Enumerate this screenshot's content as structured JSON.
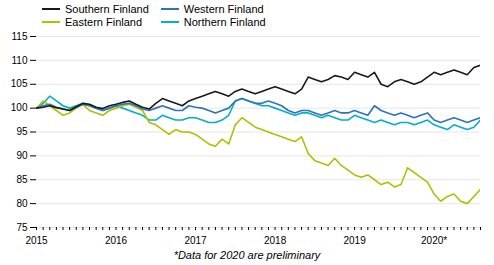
{
  "chart_data": {
    "type": "line",
    "categories": [
      "2015",
      null,
      null,
      null,
      null,
      null,
      null,
      null,
      null,
      null,
      null,
      null,
      "2016",
      null,
      null,
      null,
      null,
      null,
      null,
      null,
      null,
      null,
      null,
      null,
      "2017",
      null,
      null,
      null,
      null,
      null,
      null,
      null,
      null,
      null,
      null,
      null,
      "2018",
      null,
      null,
      null,
      null,
      null,
      null,
      null,
      null,
      null,
      null,
      null,
      "2019",
      null,
      null,
      null,
      null,
      null,
      null,
      null,
      null,
      null,
      null,
      null,
      "2020*",
      null,
      null,
      null,
      null,
      null,
      null,
      null
    ],
    "series": [
      {
        "name": "Southern Finland",
        "color": "#1a1a1a",
        "values": [
          100.0,
          100.2,
          100.5,
          100.1,
          99.8,
          99.5,
          100.3,
          101.0,
          100.8,
          100.2,
          99.9,
          100.5,
          100.8,
          101.2,
          101.5,
          100.8,
          100.2,
          99.8,
          101.0,
          102.0,
          101.5,
          101.0,
          100.5,
          101.5,
          102.0,
          102.5,
          103.0,
          103.5,
          103.0,
          102.5,
          103.5,
          104.0,
          103.5,
          103.0,
          103.5,
          104.0,
          104.5,
          104.0,
          103.5,
          103.0,
          104.0,
          106.5,
          106.0,
          105.5,
          106.0,
          106.8,
          106.5,
          106.0,
          107.5,
          107.0,
          106.5,
          107.5,
          105.0,
          104.5,
          105.5,
          106.0,
          105.5,
          105.0,
          105.5,
          106.5,
          107.5,
          107.0,
          107.5,
          108.0,
          107.5,
          107.0,
          108.5,
          109.0
        ]
      },
      {
        "name": "Western Finland",
        "color": "#2e75b6",
        "values": [
          100.0,
          100.5,
          100.8,
          100.2,
          99.8,
          99.5,
          100.2,
          100.8,
          100.5,
          100.0,
          99.5,
          100.0,
          100.5,
          100.8,
          101.0,
          100.5,
          99.8,
          99.5,
          100.0,
          100.5,
          100.0,
          99.5,
          99.5,
          100.5,
          100.2,
          100.0,
          99.5,
          99.0,
          99.5,
          100.0,
          101.5,
          102.0,
          101.5,
          101.0,
          101.0,
          101.5,
          101.0,
          100.5,
          99.5,
          99.0,
          99.5,
          99.5,
          99.0,
          98.5,
          99.0,
          99.5,
          99.0,
          99.0,
          99.5,
          99.0,
          98.5,
          100.5,
          99.5,
          99.0,
          98.5,
          99.0,
          98.5,
          98.0,
          98.5,
          99.0,
          97.5,
          97.0,
          97.5,
          98.0,
          97.5,
          97.0,
          97.5,
          98.0
        ]
      },
      {
        "name": "Eastern Finland",
        "color": "#b5bd00",
        "values": [
          100.0,
          101.5,
          100.5,
          99.5,
          98.5,
          99.0,
          100.0,
          100.8,
          99.5,
          99.0,
          98.5,
          99.5,
          100.0,
          100.5,
          100.8,
          100.2,
          99.5,
          97.0,
          96.5,
          95.5,
          94.5,
          95.5,
          95.0,
          95.0,
          94.5,
          93.5,
          92.5,
          92.0,
          93.5,
          92.5,
          96.5,
          98.0,
          97.0,
          96.0,
          95.5,
          95.0,
          94.5,
          94.0,
          93.5,
          93.0,
          94.0,
          90.5,
          89.0,
          88.5,
          88.0,
          89.5,
          88.0,
          87.0,
          86.0,
          85.5,
          86.0,
          85.0,
          84.0,
          84.5,
          83.5,
          84.0,
          87.5,
          86.5,
          85.5,
          84.5,
          82.0,
          80.5,
          81.5,
          82.0,
          80.5,
          80.0,
          81.5,
          83.0
        ]
      },
      {
        "name": "Northern Finland",
        "color": "#00b0c8",
        "values": [
          100.0,
          101.0,
          102.5,
          101.5,
          100.5,
          100.0,
          100.5,
          101.0,
          100.5,
          100.0,
          99.5,
          100.0,
          100.5,
          100.0,
          99.5,
          99.0,
          98.5,
          97.5,
          97.5,
          98.5,
          98.0,
          97.5,
          97.5,
          98.0,
          98.0,
          97.5,
          97.0,
          97.0,
          97.5,
          98.5,
          101.5,
          102.0,
          101.5,
          101.0,
          100.5,
          100.5,
          100.0,
          99.5,
          99.0,
          98.5,
          99.0,
          99.0,
          98.5,
          98.0,
          98.5,
          98.0,
          97.5,
          97.5,
          98.5,
          98.0,
          97.5,
          97.0,
          97.5,
          97.0,
          96.5,
          97.0,
          97.0,
          96.5,
          97.0,
          97.5,
          96.5,
          96.0,
          95.5,
          96.5,
          96.0,
          95.5,
          96.0,
          97.5
        ]
      }
    ],
    "ylim": [
      75,
      115
    ],
    "yticks": [
      75,
      80,
      85,
      90,
      95,
      100,
      105,
      110,
      115
    ],
    "grid": true,
    "legend": "upper left",
    "caption": "*Data for 2020 are preliminary"
  }
}
